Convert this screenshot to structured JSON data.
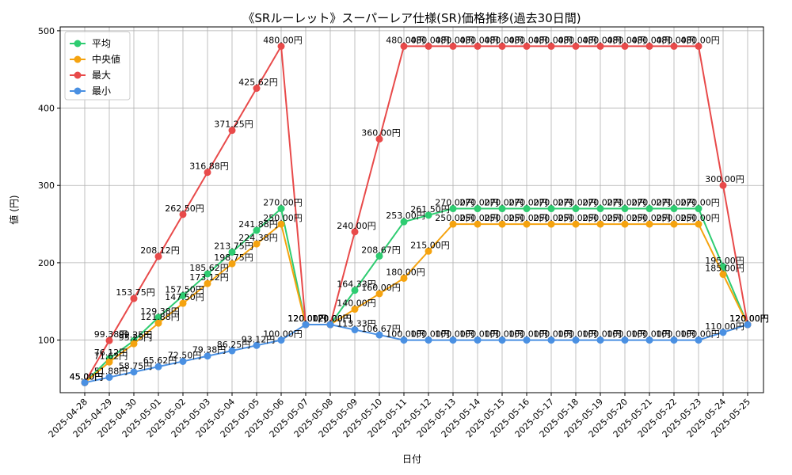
{
  "chart_data": {
    "type": "line",
    "title": "《SRルーレット》スーパーレア仕様(SR)価格推移(過去30日間)",
    "xlabel": "日付",
    "ylabel": "値 (円)",
    "ylim": [
      32,
      505
    ],
    "yticks": [
      100,
      200,
      300,
      400,
      500
    ],
    "grid": true,
    "legend_position": "top-left",
    "value_suffix": "円",
    "categories": [
      "2025-04-28",
      "2025-04-29",
      "2025-04-30",
      "2025-05-01",
      "2025-05-02",
      "2025-05-03",
      "2025-05-04",
      "2025-05-05",
      "2025-05-06",
      "2025-05-07",
      "2025-05-08",
      "2025-05-09",
      "2025-05-10",
      "2025-05-11",
      "2025-05-12",
      "2025-05-13",
      "2025-05-14",
      "2025-05-15",
      "2025-05-16",
      "2025-05-17",
      "2025-05-18",
      "2025-05-19",
      "2025-05-20",
      "2025-05-21",
      "2025-05-22",
      "2025-05-23",
      "2025-05-24",
      "2025-05-25"
    ],
    "series": [
      {
        "name": "平均",
        "color": "#2ecc71",
        "values": [
          45.0,
          76.12,
          99.25,
          129.38,
          157.5,
          185.62,
          213.75,
          241.88,
          270.0,
          120.0,
          120.0,
          164.33,
          208.67,
          253.0,
          261.5,
          270.0,
          270.0,
          270.0,
          270.0,
          270.0,
          270.0,
          270.0,
          270.0,
          270.0,
          270.0,
          270.0,
          195.0,
          120.0
        ]
      },
      {
        "name": "中央値",
        "color": "#f5a30f",
        "values": [
          45.0,
          71.62,
          95.25,
          121.88,
          147.5,
          173.12,
          198.75,
          224.38,
          250.0,
          120.0,
          120.0,
          140.0,
          160.0,
          180.0,
          215.0,
          250.0,
          250.0,
          250.0,
          250.0,
          250.0,
          250.0,
          250.0,
          250.0,
          250.0,
          250.0,
          250.0,
          185.0,
          120.0
        ]
      },
      {
        "name": "最大",
        "color": "#e84a4a",
        "values": [
          45.0,
          99.38,
          153.75,
          208.12,
          262.5,
          316.88,
          371.25,
          425.62,
          480.0,
          120.0,
          120.0,
          240.0,
          360.0,
          480.0,
          480.0,
          480.0,
          480.0,
          480.0,
          480.0,
          480.0,
          480.0,
          480.0,
          480.0,
          480.0,
          480.0,
          480.0,
          300.0,
          120.0
        ]
      },
      {
        "name": "最小",
        "color": "#4a90e2",
        "values": [
          45.0,
          51.88,
          58.75,
          65.62,
          72.5,
          79.38,
          86.25,
          93.12,
          100.0,
          120.0,
          120.0,
          113.33,
          106.67,
          100.0,
          100.0,
          100.0,
          100.0,
          100.0,
          100.0,
          100.0,
          100.0,
          100.0,
          100.0,
          100.0,
          100.0,
          100.0,
          110.0,
          120.0
        ]
      }
    ]
  }
}
